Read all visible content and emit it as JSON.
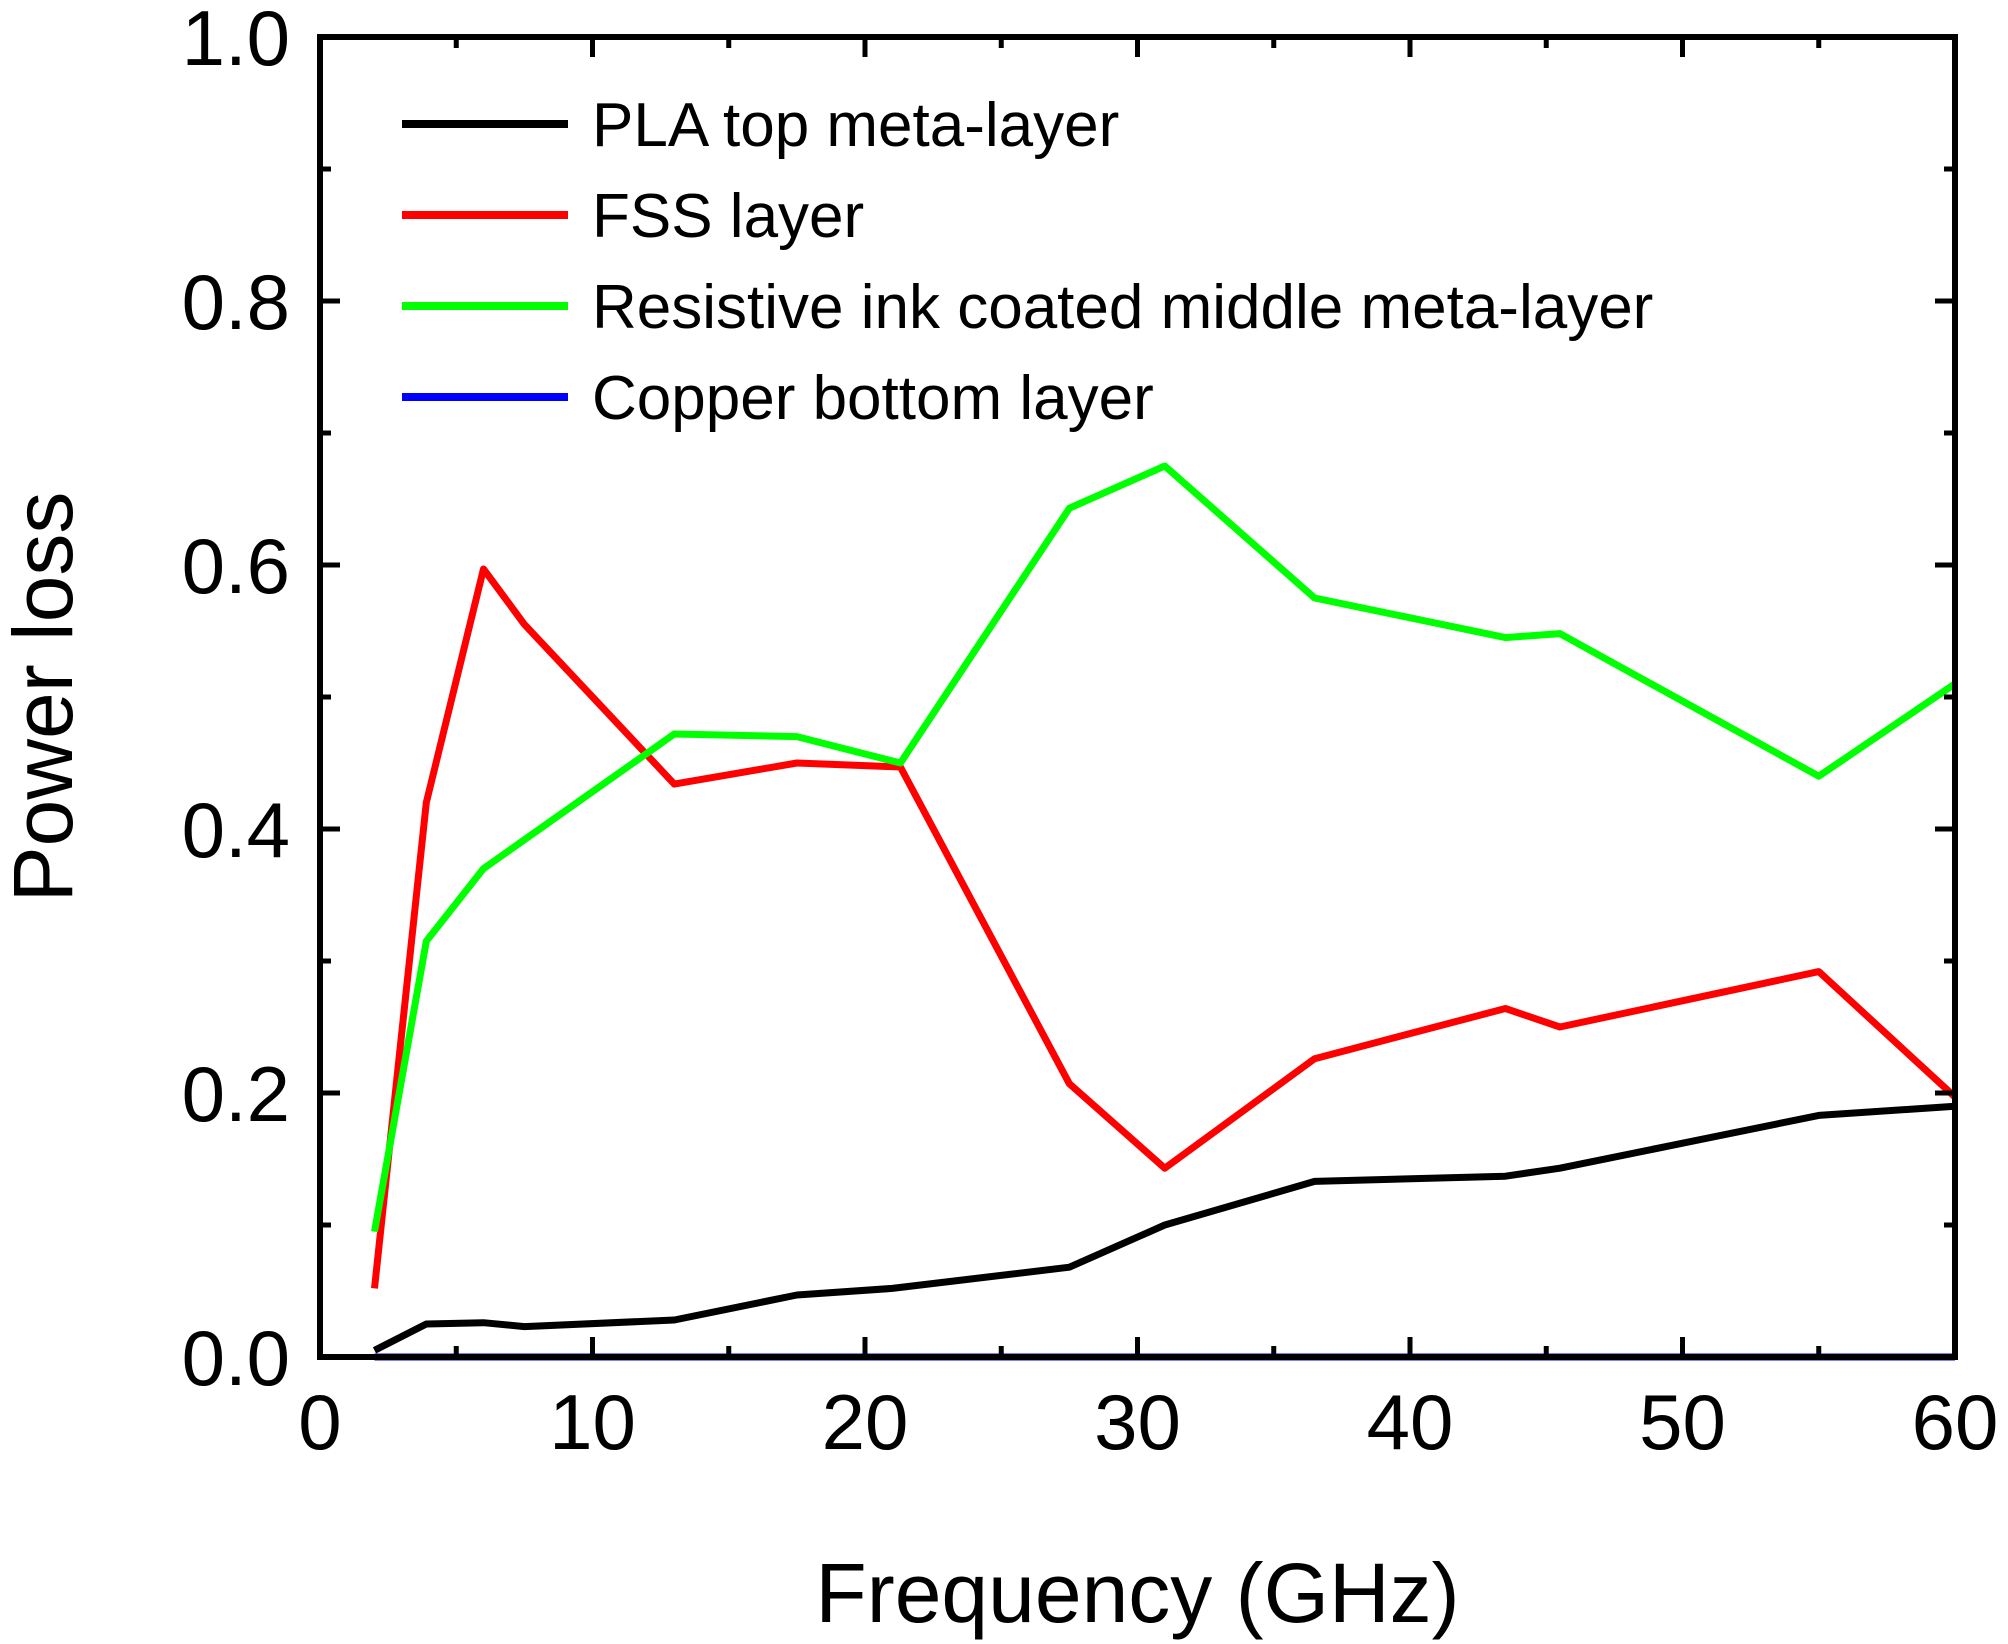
{
  "chart_data": {
    "type": "line",
    "title": "",
    "xlabel": "Frequency (GHz)",
    "ylabel": "Power loss",
    "xlim": [
      0,
      60
    ],
    "ylim": [
      0.0,
      1.0
    ],
    "grid": false,
    "legend_position": "top-left",
    "xticks": [
      0,
      10,
      20,
      30,
      40,
      50,
      60
    ],
    "xtick_labels": [
      "0",
      "10",
      "20",
      "30",
      "40",
      "50",
      "60"
    ],
    "yticks": [
      0.0,
      0.2,
      0.4,
      0.6,
      0.8,
      1.0
    ],
    "ytick_labels": [
      "0.0",
      "0.2",
      "0.4",
      "0.6",
      "0.8",
      "1.0"
    ],
    "series": [
      {
        "name": "PLA top meta-layer",
        "color": "#000000",
        "x": [
          2,
          3.9,
          6,
          7.5,
          13,
          17.5,
          21,
          27.5,
          31,
          36.5,
          43.5,
          45.5,
          55,
          60
        ],
        "y": [
          0.005,
          0.025,
          0.026,
          0.023,
          0.028,
          0.047,
          0.052,
          0.068,
          0.1,
          0.133,
          0.137,
          0.143,
          0.183,
          0.19
        ]
      },
      {
        "name": "FSS layer",
        "color": "#ff0000",
        "x": [
          2,
          3.9,
          6,
          7.5,
          13,
          17.5,
          21.3,
          27.5,
          31,
          36.5,
          43.5,
          45.5,
          55,
          60
        ],
        "y": [
          0.052,
          0.42,
          0.597,
          0.555,
          0.434,
          0.45,
          0.447,
          0.207,
          0.143,
          0.226,
          0.264,
          0.25,
          0.292,
          0.197
        ]
      },
      {
        "name": "Resistive ink coated middle meta-layer",
        "color": "#00ff00",
        "x": [
          2,
          3.9,
          6,
          13,
          17.5,
          21.3,
          27.5,
          31,
          36.5,
          43.5,
          45.5,
          55,
          60
        ],
        "y": [
          0.095,
          0.315,
          0.37,
          0.472,
          0.47,
          0.45,
          0.643,
          0.675,
          0.575,
          0.545,
          0.548,
          0.44,
          0.51
        ]
      },
      {
        "name": "Copper bottom layer",
        "color": "#0000ff",
        "x": [
          2,
          60
        ],
        "y": [
          0.0,
          0.0
        ]
      }
    ]
  }
}
